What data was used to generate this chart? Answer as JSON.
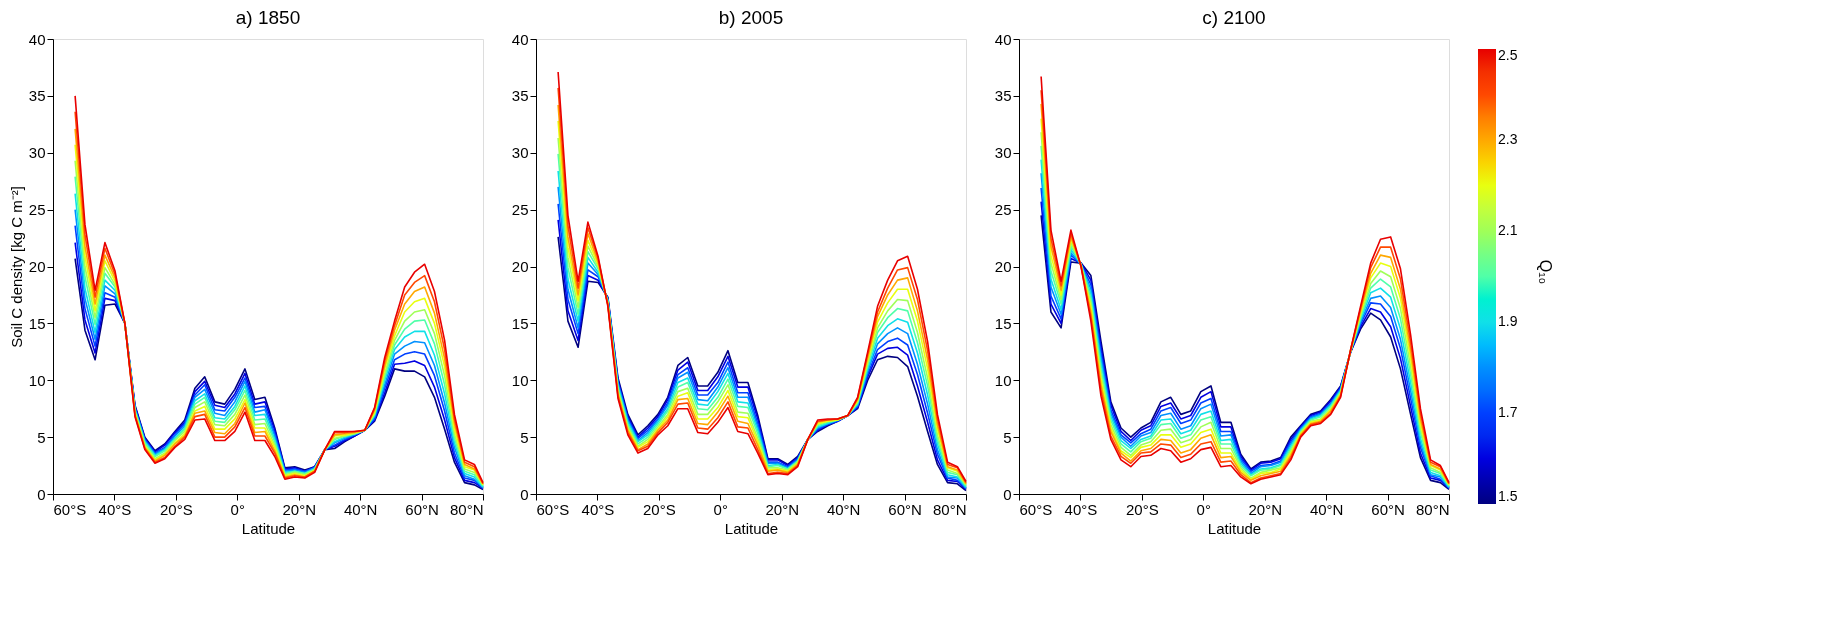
{
  "chart_data": [
    {
      "type": "line",
      "title": "a) 1850",
      "xlabel": "Latitude",
      "ylabel": "Soil C density [kg C m⁻²]",
      "xlim": [
        -60,
        80
      ],
      "ylim": [
        0,
        40
      ],
      "xticks": [
        {
          "value": -60,
          "label": "60°S"
        },
        {
          "value": -40,
          "label": "40°S"
        },
        {
          "value": -20,
          "label": "20°S"
        },
        {
          "value": 0,
          "label": "0°"
        },
        {
          "value": 20,
          "label": "20°N"
        },
        {
          "value": 40,
          "label": "40°N"
        },
        {
          "value": 60,
          "label": "60°N"
        },
        {
          "value": 80,
          "label": "80°N"
        }
      ],
      "yticks": [
        0,
        5,
        10,
        15,
        20,
        25,
        30,
        35,
        40
      ],
      "x": [
        -52.8,
        -49.6,
        -46.3,
        -43.1,
        -39.8,
        -36.6,
        -33.3,
        -30.1,
        -26.8,
        -23.6,
        -20.3,
        -17.1,
        -13.8,
        -10.6,
        -7.3,
        -4.1,
        -0.8,
        2.5,
        5.7,
        9.0,
        12.2,
        15.5,
        18.7,
        22.0,
        25.2,
        28.5,
        31.7,
        35.0,
        38.2,
        41.5,
        44.7,
        48.0,
        51.2,
        54.5,
        57.7,
        61.0,
        64.2,
        67.5,
        70.7,
        74.0,
        77.2,
        80
      ],
      "series": [
        {
          "color": "#000080",
          "values": [
            20.7,
            14.4,
            11.8,
            16.6,
            16.7,
            15.0,
            7.8,
            5.0,
            3.8,
            4.4,
            5.5,
            6.5,
            9.3,
            10.3,
            8.1,
            7.9,
            9.2,
            11.0,
            8.3,
            8.5,
            5.8,
            2.3,
            2.4,
            2.1,
            2.4,
            3.9,
            4.0,
            4.6,
            5.1,
            5.6,
            6.4,
            8.6,
            11.0,
            10.8,
            10.8,
            10.3,
            8.5,
            5.7,
            2.8,
            1.0,
            0.8,
            0.4
          ]
        },
        {
          "color": "#0000e0",
          "values": [
            22.1,
            15.3,
            12.4,
            17.2,
            17.0,
            15.0,
            7.7,
            4.9,
            3.7,
            4.3,
            5.4,
            6.3,
            9.0,
            9.9,
            7.8,
            7.6,
            8.8,
            10.6,
            7.9,
            8.1,
            5.6,
            2.2,
            2.3,
            2.0,
            2.4,
            3.9,
            4.2,
            4.7,
            5.1,
            5.6,
            6.5,
            8.9,
            11.4,
            11.5,
            11.7,
            11.3,
            9.4,
            6.5,
            3.2,
            1.2,
            1.0,
            0.5
          ]
        },
        {
          "color": "#0040ff",
          "values": [
            23.6,
            16.3,
            13.0,
            17.7,
            17.3,
            15.0,
            7.6,
            4.8,
            3.6,
            4.1,
            5.2,
            6.2,
            8.7,
            9.6,
            7.4,
            7.3,
            8.5,
            10.2,
            7.6,
            7.7,
            5.3,
            2.1,
            2.2,
            2.0,
            2.3,
            3.9,
            4.3,
            4.8,
            5.2,
            5.6,
            6.6,
            9.3,
            11.8,
            12.3,
            12.5,
            12.3,
            10.4,
            7.3,
            3.6,
            1.4,
            1.2,
            0.5
          ]
        },
        {
          "color": "#0090ff",
          "values": [
            25.0,
            17.2,
            13.6,
            18.3,
            17.6,
            15.0,
            7.5,
            4.7,
            3.5,
            4.0,
            5.1,
            6.0,
            8.5,
            9.2,
            7.1,
            6.9,
            8.1,
            9.9,
            7.2,
            7.4,
            5.1,
            2.0,
            2.1,
            1.9,
            2.3,
            3.9,
            4.5,
            4.9,
            5.2,
            5.6,
            6.8,
            9.6,
            12.3,
            13.0,
            13.4,
            13.3,
            11.3,
            8.0,
            4.1,
            1.6,
            1.3,
            0.6
          ]
        },
        {
          "color": "#10e0e8",
          "values": [
            26.4,
            18.1,
            14.2,
            18.8,
            17.9,
            15.0,
            7.4,
            4.6,
            3.4,
            3.9,
            4.9,
            5.8,
            8.2,
            8.8,
            6.7,
            6.6,
            7.7,
            9.5,
            6.9,
            7.0,
            4.8,
            1.9,
            2.0,
            1.8,
            2.2,
            3.9,
            4.6,
            5.0,
            5.3,
            5.6,
            6.9,
            10.0,
            12.7,
            13.8,
            14.3,
            14.3,
            12.2,
            8.8,
            4.5,
            1.8,
            1.5,
            0.6
          ]
        },
        {
          "color": "#50ffa8",
          "values": [
            27.9,
            19.1,
            14.9,
            19.4,
            18.2,
            15.0,
            7.3,
            4.5,
            3.3,
            3.8,
            4.8,
            5.7,
            7.9,
            8.5,
            6.4,
            6.3,
            7.4,
            9.1,
            6.5,
            6.6,
            4.6,
            1.8,
            2.0,
            1.8,
            2.2,
            3.9,
            4.8,
            5.1,
            5.3,
            5.6,
            7.0,
            10.3,
            13.1,
            14.5,
            15.2,
            15.3,
            13.2,
            9.6,
            4.9,
            2.0,
            1.7,
            0.7
          ]
        },
        {
          "color": "#a0ff58",
          "values": [
            29.3,
            20.0,
            15.5,
            19.9,
            18.4,
            15.0,
            7.2,
            4.3,
            3.1,
            3.6,
            4.7,
            5.5,
            7.6,
            8.1,
            6.1,
            6.0,
            7.0,
            8.7,
            6.1,
            6.2,
            4.3,
            1.7,
            1.9,
            1.7,
            2.1,
            3.9,
            4.9,
            5.1,
            5.3,
            5.6,
            7.1,
            10.6,
            13.5,
            15.2,
            16.0,
            16.2,
            14.1,
            10.4,
            5.3,
            2.2,
            1.9,
            0.8
          ]
        },
        {
          "color": "#e8ff10",
          "values": [
            30.7,
            20.9,
            16.1,
            20.5,
            18.7,
            15.0,
            7.1,
            4.2,
            3.0,
            3.5,
            4.5,
            5.3,
            7.3,
            7.7,
            5.7,
            5.7,
            6.6,
            8.3,
            5.8,
            5.8,
            4.1,
            1.6,
            1.8,
            1.6,
            2.1,
            3.9,
            5.1,
            5.2,
            5.4,
            5.6,
            7.2,
            11.0,
            13.9,
            16.0,
            16.9,
            17.2,
            15.0,
            11.2,
            5.7,
            2.4,
            2.1,
            0.8
          ]
        },
        {
          "color": "#ffa800",
          "values": [
            32.1,
            21.8,
            16.7,
            21.0,
            19.0,
            15.0,
            7.0,
            4.1,
            2.9,
            3.4,
            4.4,
            5.1,
            7.1,
            7.3,
            5.4,
            5.3,
            6.2,
            8.0,
            5.4,
            5.5,
            3.8,
            1.5,
            1.7,
            1.5,
            2.0,
            3.9,
            5.2,
            5.3,
            5.4,
            5.6,
            7.4,
            11.3,
            14.4,
            16.7,
            17.8,
            18.2,
            15.9,
            11.9,
            6.2,
            2.6,
            2.2,
            0.9
          ]
        },
        {
          "color": "#ff4800",
          "values": [
            33.6,
            22.8,
            17.3,
            21.6,
            19.3,
            15.0,
            6.9,
            4.0,
            2.8,
            3.2,
            4.2,
            5.0,
            6.8,
            7.0,
            5.0,
            5.0,
            5.9,
            7.6,
            5.1,
            5.1,
            3.6,
            1.4,
            1.6,
            1.5,
            2.0,
            3.9,
            5.4,
            5.4,
            5.5,
            5.6,
            7.5,
            11.7,
            14.8,
            17.5,
            18.6,
            19.2,
            16.9,
            12.7,
            6.6,
            2.8,
            2.4,
            0.9
          ]
        },
        {
          "color": "#e80000",
          "values": [
            35.0,
            23.7,
            17.9,
            22.1,
            19.6,
            15.0,
            6.8,
            3.9,
            2.7,
            3.1,
            4.1,
            4.8,
            6.5,
            6.6,
            4.7,
            4.7,
            5.5,
            7.2,
            4.7,
            4.7,
            3.3,
            1.3,
            1.5,
            1.4,
            1.9,
            3.9,
            5.5,
            5.5,
            5.5,
            5.6,
            7.6,
            12.0,
            15.2,
            18.2,
            19.5,
            20.2,
            17.8,
            13.5,
            7.0,
            3.0,
            2.6,
            1.0
          ]
        }
      ]
    },
    {
      "type": "line",
      "title": "b) 2005",
      "xlabel": "Latitude",
      "xlim": [
        -60,
        80
      ],
      "ylim": [
        0,
        40
      ],
      "xticks": [
        {
          "value": -60,
          "label": "60°S"
        },
        {
          "value": -40,
          "label": "40°S"
        },
        {
          "value": -20,
          "label": "20°S"
        },
        {
          "value": 0,
          "label": "0°"
        },
        {
          "value": 20,
          "label": "20°N"
        },
        {
          "value": 40,
          "label": "40°N"
        },
        {
          "value": 60,
          "label": "60°N"
        },
        {
          "value": 80,
          "label": "80°N"
        }
      ],
      "yticks": [
        0,
        5,
        10,
        15,
        20,
        25,
        30,
        35,
        40
      ],
      "x": [
        -52.8,
        -49.6,
        -46.3,
        -43.1,
        -39.8,
        -36.6,
        -33.3,
        -30.1,
        -26.8,
        -23.6,
        -20.3,
        -17.1,
        -13.8,
        -10.6,
        -7.3,
        -4.1,
        -0.8,
        2.5,
        5.7,
        9.0,
        12.2,
        15.5,
        18.7,
        22.0,
        25.2,
        28.5,
        31.7,
        35.0,
        38.2,
        41.5,
        44.7,
        48.0,
        51.2,
        54.5,
        57.7,
        61.0,
        64.2,
        67.5,
        70.7,
        74.0,
        77.2,
        80
      ],
      "series": [
        {
          "color": "#000080",
          "values": [
            22.6,
            15.2,
            12.9,
            18.7,
            18.6,
            17.3,
            10.2,
            7.0,
            5.2,
            6.0,
            7.0,
            8.5,
            11.3,
            12.0,
            9.5,
            9.5,
            10.7,
            12.6,
            9.8,
            9.8,
            6.9,
            3.1,
            3.1,
            2.6,
            3.3,
            4.8,
            5.5,
            6.0,
            6.4,
            6.9,
            7.5,
            10.0,
            11.8,
            12.1,
            12.0,
            11.2,
            8.6,
            5.5,
            2.6,
            1.0,
            0.9,
            0.3
          ]
        },
        {
          "color": "#0000e0",
          "values": [
            24.1,
            16.1,
            13.5,
            19.2,
            18.8,
            17.2,
            10.0,
            6.8,
            5.0,
            5.8,
            6.8,
            8.3,
            10.9,
            11.6,
            9.1,
            9.1,
            10.3,
            12.1,
            9.4,
            9.4,
            6.6,
            3.0,
            3.0,
            2.5,
            3.2,
            4.8,
            5.6,
            6.1,
            6.4,
            6.9,
            7.6,
            10.3,
            12.3,
            12.8,
            12.9,
            12.2,
            9.5,
            6.3,
            3.0,
            1.2,
            1.1,
            0.4
          ]
        },
        {
          "color": "#0040ff",
          "values": [
            25.5,
            17.1,
            14.1,
            19.7,
            19.1,
            17.1,
            9.8,
            6.6,
            4.9,
            5.6,
            6.6,
            8.0,
            10.5,
            11.1,
            8.7,
            8.7,
            9.8,
            11.6,
            8.9,
            8.9,
            6.2,
            2.8,
            2.8,
            2.4,
            3.1,
            4.8,
            5.7,
            6.1,
            6.4,
            6.9,
            7.7,
            10.5,
            12.7,
            13.4,
            13.7,
            13.1,
            10.5,
            7.1,
            3.5,
            1.4,
            1.2,
            0.5
          ]
        },
        {
          "color": "#0090ff",
          "values": [
            27.0,
            18.0,
            14.6,
            20.3,
            19.3,
            17.1,
            9.7,
            6.5,
            4.7,
            5.4,
            6.5,
            7.8,
            10.2,
            10.7,
            8.3,
            8.2,
            9.4,
            11.1,
            8.5,
            8.5,
            5.9,
            2.7,
            2.7,
            2.3,
            3.0,
            4.8,
            5.8,
            6.2,
            6.5,
            6.9,
            7.8,
            10.8,
            13.2,
            14.1,
            14.6,
            14.1,
            11.4,
            7.9,
            3.9,
            1.5,
            1.4,
            0.5
          ]
        },
        {
          "color": "#10e0e8",
          "values": [
            28.4,
            18.9,
            15.2,
            20.8,
            19.5,
            17.0,
            9.5,
            6.3,
            4.6,
            5.2,
            6.3,
            7.5,
            9.8,
            10.2,
            7.9,
            7.8,
            9.0,
            10.6,
            8.1,
            8.0,
            5.6,
            2.5,
            2.6,
            2.2,
            2.9,
            4.8,
            5.9,
            6.2,
            6.5,
            6.9,
            7.9,
            11.0,
            13.7,
            14.8,
            15.4,
            15.1,
            12.4,
            8.7,
            4.4,
            1.7,
            1.5,
            0.6
          ]
        },
        {
          "color": "#50ffa8",
          "values": [
            29.9,
            19.9,
            15.8,
            21.3,
            19.8,
            16.9,
            9.3,
            6.1,
            4.4,
            5.0,
            6.1,
            7.3,
            9.4,
            9.8,
            7.5,
            7.4,
            8.5,
            10.1,
            7.7,
            7.6,
            5.3,
            2.4,
            2.5,
            2.2,
            2.9,
            4.8,
            6.0,
            6.3,
            6.5,
            6.9,
            8.0,
            11.3,
            14.2,
            15.5,
            16.3,
            16.1,
            13.3,
            9.5,
            4.8,
            1.9,
            1.7,
            0.7
          ]
        },
        {
          "color": "#a0ff58",
          "values": [
            31.3,
            20.8,
            16.4,
            21.8,
            20.0,
            16.8,
            9.1,
            5.9,
            4.2,
            4.8,
            5.9,
            7.0,
            9.0,
            9.3,
            7.0,
            7.0,
            8.1,
            9.6,
            7.2,
            7.1,
            4.9,
            2.3,
            2.3,
            2.1,
            2.8,
            4.8,
            6.1,
            6.4,
            6.5,
            6.9,
            8.1,
            11.5,
            14.6,
            16.1,
            17.1,
            17.0,
            14.2,
            10.2,
            5.2,
            2.1,
            1.8,
            0.8
          ]
        },
        {
          "color": "#e8ff10",
          "values": [
            32.8,
            21.7,
            17.0,
            22.3,
            20.2,
            16.7,
            8.9,
            5.7,
            4.1,
            4.6,
            5.7,
            6.8,
            8.6,
            8.9,
            6.6,
            6.6,
            7.6,
            9.1,
            6.8,
            6.7,
            4.6,
            2.1,
            2.2,
            2.0,
            2.7,
            4.8,
            6.2,
            6.4,
            6.5,
            6.9,
            8.2,
            11.8,
            15.1,
            16.8,
            18.0,
            18.0,
            15.2,
            11.0,
            5.7,
            2.3,
            2.0,
            0.9
          ]
        },
        {
          "color": "#ffa800",
          "values": [
            34.2,
            22.6,
            17.5,
            22.9,
            20.4,
            16.7,
            8.8,
            5.6,
            3.9,
            4.4,
            5.6,
            6.5,
            8.3,
            8.4,
            6.2,
            6.1,
            7.2,
            8.6,
            6.4,
            6.2,
            4.3,
            2.0,
            2.1,
            1.9,
            2.6,
            4.8,
            6.3,
            6.5,
            6.6,
            6.9,
            8.3,
            12.0,
            15.6,
            17.5,
            18.8,
            19.0,
            16.1,
            11.8,
            6.1,
            2.4,
            2.1,
            0.9
          ]
        },
        {
          "color": "#ff4800",
          "values": [
            35.7,
            23.6,
            18.1,
            23.4,
            20.7,
            16.6,
            8.6,
            5.4,
            3.8,
            4.2,
            5.4,
            6.3,
            7.9,
            8.0,
            5.8,
            5.7,
            6.7,
            8.1,
            5.9,
            5.8,
            3.9,
            1.8,
            1.9,
            1.8,
            2.5,
            4.8,
            6.4,
            6.5,
            6.6,
            6.9,
            8.4,
            12.3,
            16.0,
            18.1,
            19.7,
            19.9,
            17.1,
            12.6,
            6.6,
            2.6,
            2.3,
            1.0
          ]
        },
        {
          "color": "#e80000",
          "values": [
            37.1,
            24.5,
            18.7,
            23.9,
            20.9,
            16.5,
            8.4,
            5.2,
            3.6,
            4.0,
            5.2,
            6.0,
            7.5,
            7.5,
            5.4,
            5.3,
            6.3,
            7.6,
            5.5,
            5.3,
            3.6,
            1.7,
            1.8,
            1.7,
            2.4,
            4.8,
            6.5,
            6.6,
            6.6,
            6.9,
            8.5,
            12.5,
            16.5,
            18.8,
            20.5,
            20.9,
            18.0,
            13.4,
            7.0,
            2.8,
            2.4,
            1.1
          ]
        }
      ]
    },
    {
      "type": "line",
      "title": "c) 2100",
      "xlabel": "Latitude",
      "xlim": [
        -60,
        80
      ],
      "ylim": [
        0,
        40
      ],
      "clabel": "Q₁₀",
      "clim": [
        1.5,
        2.5
      ],
      "cticks": [
        1.5,
        1.7,
        1.9,
        2.1,
        2.3,
        2.5
      ],
      "xticks": [
        {
          "value": -60,
          "label": "60°S"
        },
        {
          "value": -40,
          "label": "40°S"
        },
        {
          "value": -20,
          "label": "20°S"
        },
        {
          "value": 0,
          "label": "0°"
        },
        {
          "value": 20,
          "label": "20°N"
        },
        {
          "value": 40,
          "label": "40°N"
        },
        {
          "value": 60,
          "label": "60°N"
        },
        {
          "value": 80,
          "label": "80°N"
        }
      ],
      "yticks": [
        0,
        5,
        10,
        15,
        20,
        25,
        30,
        35,
        40
      ],
      "x": [
        -52.8,
        -49.6,
        -46.3,
        -43.1,
        -39.8,
        -36.6,
        -33.3,
        -30.1,
        -26.8,
        -23.6,
        -20.3,
        -17.1,
        -13.8,
        -10.6,
        -7.3,
        -4.1,
        -0.8,
        2.5,
        5.7,
        9.0,
        12.2,
        15.5,
        18.7,
        22.0,
        25.2,
        28.5,
        31.7,
        35.0,
        38.2,
        41.5,
        44.7,
        48.0,
        51.2,
        54.5,
        57.7,
        61.0,
        64.2,
        67.5,
        70.7,
        74.0,
        77.2,
        80
      ],
      "series": [
        {
          "color": "#000080",
          "values": [
            24.5,
            16.0,
            14.6,
            20.4,
            20.3,
            19.2,
            13.4,
            8.1,
            5.8,
            5.0,
            5.8,
            6.3,
            8.1,
            8.5,
            7.0,
            7.3,
            9.0,
            9.5,
            6.3,
            6.3,
            3.5,
            2.2,
            2.8,
            2.9,
            3.2,
            5.0,
            6.0,
            7.0,
            7.3,
            8.3,
            9.5,
            12.5,
            14.5,
            15.9,
            15.3,
            13.8,
            11.0,
            7.0,
            3.2,
            1.2,
            1.0,
            0.4
          ]
        },
        {
          "color": "#0000e0",
          "values": [
            25.7,
            16.7,
            15.0,
            20.7,
            20.3,
            18.8,
            12.9,
            7.8,
            5.5,
            4.7,
            5.6,
            6.0,
            7.7,
            8.0,
            6.6,
            6.9,
            8.5,
            9.0,
            5.9,
            5.9,
            3.3,
            2.1,
            2.7,
            2.8,
            3.1,
            4.8,
            5.9,
            6.9,
            7.2,
            8.2,
            9.4,
            12.5,
            14.7,
            16.3,
            16.0,
            14.7,
            11.9,
            7.7,
            3.6,
            1.4,
            1.2,
            0.5
          ]
        },
        {
          "color": "#0040ff",
          "values": [
            26.9,
            17.4,
            15.4,
            21.0,
            20.2,
            18.4,
            12.4,
            7.4,
            5.2,
            4.5,
            5.3,
            5.7,
            7.3,
            7.6,
            6.2,
            6.5,
            8.0,
            8.4,
            5.5,
            5.5,
            3.1,
            2.0,
            2.5,
            2.6,
            2.9,
            4.6,
            5.8,
            6.8,
            7.1,
            8.0,
            9.3,
            12.5,
            14.9,
            16.8,
            16.7,
            15.6,
            12.8,
            8.4,
            4.1,
            1.6,
            1.3,
            0.5
          ]
        },
        {
          "color": "#0090ff",
          "values": [
            28.2,
            18.2,
            15.8,
            21.2,
            20.2,
            18.0,
            12.0,
            7.1,
            5.0,
            4.2,
            5.1,
            5.4,
            6.9,
            7.1,
            5.7,
            6.0,
            7.5,
            7.9,
            5.1,
            5.2,
            2.9,
            1.8,
            2.4,
            2.5,
            2.8,
            4.4,
            5.7,
            6.7,
            7.0,
            7.9,
            9.2,
            12.6,
            15.1,
            17.2,
            17.4,
            16.4,
            13.6,
            9.1,
            4.5,
            1.7,
            1.5,
            0.6
          ]
        },
        {
          "color": "#10e0e8",
          "values": [
            29.4,
            18.9,
            16.2,
            21.5,
            20.2,
            17.6,
            11.5,
            6.8,
            4.7,
            4.0,
            4.8,
            5.1,
            6.5,
            6.6,
            5.3,
            5.6,
            7.0,
            7.3,
            4.7,
            4.8,
            2.7,
            1.7,
            2.2,
            2.3,
            2.6,
            4.2,
            5.6,
            6.6,
            6.9,
            7.8,
            9.1,
            12.6,
            15.3,
            17.7,
            18.1,
            17.3,
            14.5,
            9.8,
            4.9,
            1.9,
            1.6,
            0.6
          ]
        },
        {
          "color": "#50ffa8",
          "values": [
            30.6,
            19.6,
            16.7,
            21.8,
            20.2,
            17.2,
            11.0,
            6.5,
            4.4,
            3.7,
            4.6,
            4.9,
            6.1,
            6.2,
            4.9,
            5.2,
            6.5,
            6.8,
            4.4,
            4.4,
            2.5,
            1.6,
            2.1,
            2.2,
            2.5,
            4.0,
            5.5,
            6.5,
            6.8,
            7.7,
            9.0,
            12.6,
            15.5,
            18.1,
            18.9,
            18.2,
            15.4,
            10.5,
            5.4,
            2.1,
            1.8,
            0.7
          ]
        },
        {
          "color": "#a0ff58",
          "values": [
            31.8,
            20.3,
            17.1,
            22.1,
            20.1,
            16.8,
            10.5,
            6.1,
            4.1,
            3.4,
            4.3,
            4.6,
            5.6,
            5.7,
            4.5,
            4.8,
            5.9,
            6.3,
            4.0,
            4.0,
            2.3,
            1.4,
            1.9,
            2.1,
            2.3,
            3.8,
            5.4,
            6.4,
            6.6,
            7.5,
            8.9,
            12.6,
            15.7,
            18.5,
            19.6,
            19.1,
            16.3,
            11.2,
            5.8,
            2.3,
            1.9,
            0.8
          ]
        },
        {
          "color": "#e8ff10",
          "values": [
            33.0,
            21.0,
            17.5,
            22.4,
            20.1,
            16.4,
            10.0,
            5.8,
            3.8,
            3.2,
            4.1,
            4.3,
            5.2,
            5.2,
            4.1,
            4.4,
            5.4,
            5.7,
            3.6,
            3.6,
            2.1,
            1.3,
            1.8,
            1.9,
            2.2,
            3.6,
            5.3,
            6.3,
            6.5,
            7.4,
            8.8,
            12.6,
            15.9,
            19.0,
            20.3,
            20.0,
            17.2,
            11.9,
            6.2,
            2.5,
            2.1,
            0.8
          ]
        },
        {
          "color": "#ffa800",
          "values": [
            34.3,
            21.8,
            17.9,
            22.6,
            20.1,
            16.0,
            9.6,
            5.5,
            3.6,
            2.9,
            3.8,
            4.0,
            4.8,
            4.7,
            3.6,
            3.9,
            4.9,
            5.2,
            3.2,
            3.3,
            1.9,
            1.2,
            1.6,
            1.8,
            2.0,
            3.4,
            5.2,
            6.2,
            6.4,
            7.3,
            8.7,
            12.7,
            16.1,
            19.4,
            21.0,
            20.8,
            18.0,
            12.6,
            6.6,
            2.6,
            2.2,
            0.9
          ]
        },
        {
          "color": "#ff4800",
          "values": [
            35.5,
            22.5,
            18.3,
            22.9,
            20.0,
            15.6,
            9.1,
            5.1,
            3.3,
            2.7,
            3.6,
            3.7,
            4.4,
            4.3,
            3.2,
            3.5,
            4.4,
            4.6,
            2.8,
            2.9,
            1.7,
            1.0,
            1.4,
            1.6,
            1.8,
            3.2,
            5.1,
            6.1,
            6.3,
            7.1,
            8.6,
            12.7,
            16.3,
            19.9,
            21.7,
            21.7,
            18.9,
            13.3,
            7.1,
            2.8,
            2.4,
            0.9
          ]
        },
        {
          "color": "#e80000",
          "values": [
            36.7,
            23.2,
            18.7,
            23.2,
            20.0,
            15.2,
            8.6,
            4.8,
            3.0,
            2.4,
            3.3,
            3.4,
            4.0,
            3.8,
            2.8,
            3.1,
            3.9,
            4.1,
            2.4,
            2.5,
            1.5,
            0.9,
            1.3,
            1.5,
            1.7,
            3.0,
            5.0,
            6.0,
            6.2,
            7.0,
            8.5,
            12.7,
            16.5,
            20.3,
            22.4,
            22.6,
            19.8,
            14.0,
            7.5,
            3.0,
            2.5,
            1.0
          ]
        }
      ]
    }
  ]
}
